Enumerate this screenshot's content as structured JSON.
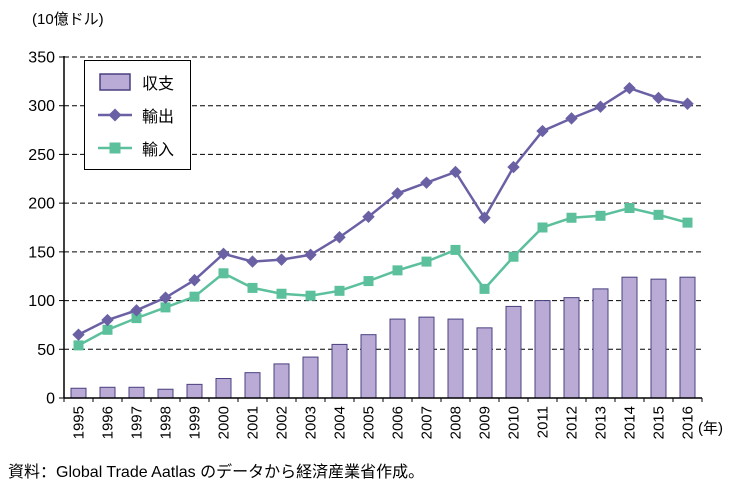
{
  "unit_label": "(10億ドル)",
  "year_axis_label": "(年)",
  "source_note": "資料：Global Trade Aatlas のデータから経済産業省作成。",
  "legend": [
    {
      "label": "収支",
      "type": "bar"
    },
    {
      "label": "輸出",
      "type": "diamond-line"
    },
    {
      "label": "輸入",
      "type": "square-line"
    }
  ],
  "colors": {
    "bar_fill": "#b9abd6",
    "bar_border": "#4a4080",
    "export_line": "#6a61a5",
    "import_line": "#5bc09b",
    "axis": "#000000",
    "grid": "#000000"
  },
  "chart_data": {
    "type": "bar+line",
    "title": "",
    "xlabel": "(年)",
    "ylabel": "(10億ドル)",
    "ylim": [
      0,
      350
    ],
    "ytick_interval": 50,
    "grid": "dashed-horizontal",
    "legend_position": "top-left-inside",
    "categories": [
      1995,
      1996,
      1997,
      1998,
      1999,
      2000,
      2001,
      2002,
      2003,
      2004,
      2005,
      2006,
      2007,
      2008,
      2009,
      2010,
      2011,
      2012,
      2013,
      2014,
      2015,
      2016
    ],
    "series": [
      {
        "name": "収支",
        "type": "bar",
        "values": [
          10,
          11,
          11,
          9,
          14,
          20,
          26,
          35,
          42,
          55,
          65,
          81,
          83,
          81,
          72,
          94,
          100,
          103,
          112,
          124,
          122,
          124
        ]
      },
      {
        "name": "輸出",
        "type": "line",
        "marker": "diamond",
        "values": [
          65,
          80,
          90,
          103,
          121,
          148,
          140,
          142,
          147,
          165,
          186,
          210,
          221,
          232,
          185,
          237,
          274,
          287,
          299,
          318,
          308,
          302
        ]
      },
      {
        "name": "輸入",
        "type": "line",
        "marker": "square",
        "values": [
          54,
          70,
          82,
          93,
          104,
          128,
          113,
          107,
          105,
          110,
          120,
          131,
          140,
          152,
          112,
          145,
          175,
          185,
          187,
          195,
          188,
          180
        ]
      }
    ]
  }
}
